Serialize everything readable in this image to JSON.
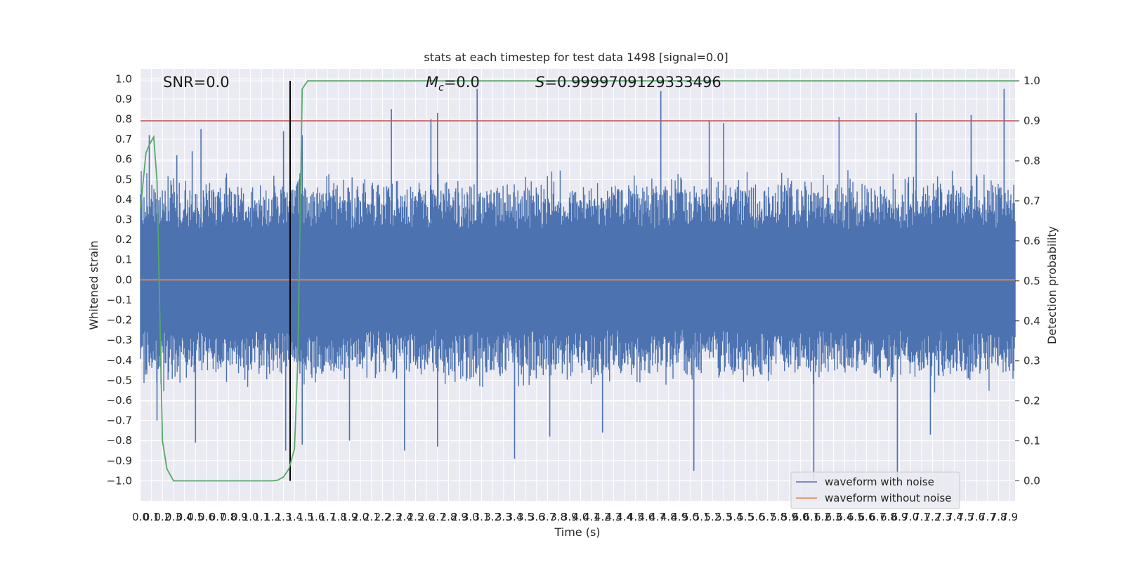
{
  "chart_data": {
    "type": "line",
    "title": "stats at each timestep for test data 1498 [signal=0.0]",
    "xlabel": "Time (s)",
    "ylabel": "Whitened strain",
    "ylabel_right": "Detection probability",
    "xlim": [
      0.0,
      7.95
    ],
    "ylim": [
      -1.1,
      1.05
    ],
    "ylim_right": [
      -0.05,
      1.03
    ],
    "xticks": [
      0.0,
      0.1,
      0.2,
      0.3,
      0.4,
      0.5,
      0.6,
      0.7,
      0.8,
      0.9,
      1.0,
      1.1,
      1.2,
      1.3,
      1.4,
      1.5,
      1.6,
      1.7,
      1.8,
      1.9,
      2.0,
      2.1,
      2.2,
      2.3,
      2.4,
      2.5,
      2.6,
      2.7,
      2.8,
      2.9,
      3.0,
      3.1,
      3.2,
      3.3,
      3.4,
      3.5,
      3.6,
      3.7,
      3.8,
      3.9,
      4.0,
      4.1,
      4.2,
      4.3,
      4.4,
      4.5,
      4.6,
      4.7,
      4.8,
      4.9,
      5.0,
      5.1,
      5.2,
      5.3,
      5.4,
      5.5,
      5.6,
      5.7,
      5.8,
      5.9,
      6.0,
      6.1,
      6.2,
      6.3,
      6.4,
      6.5,
      6.6,
      6.7,
      6.8,
      6.9,
      7.0,
      7.1,
      7.2,
      7.3,
      7.4,
      7.5,
      7.6,
      7.7,
      7.8,
      7.9
    ],
    "xtick_labels": [
      "0.0",
      "0.1",
      "0.2",
      "0.3",
      "0.4",
      "0.5",
      "0.6",
      "0.7",
      "0.8",
      "0.9",
      "1.0",
      "1.1",
      "1.2",
      "1.3",
      "1.4",
      "1.5",
      "1.6",
      "1.7",
      "1.8",
      "1.9",
      "2.0",
      "2.1",
      "2.2",
      "2.3",
      "2.4",
      "2.5",
      "2.6",
      "2.7",
      "2.8",
      "2.9",
      "3.0",
      "3.1",
      "3.2",
      "3.3",
      "3.4",
      "3.5",
      "3.6",
      "3.7",
      "3.8",
      "3.9",
      "4.0",
      "4.1",
      "4.2",
      "4.3",
      "4.4",
      "4.5",
      "4.6",
      "4.7",
      "4.8",
      "4.9",
      "5.0",
      "5.1",
      "5.2",
      "5.3",
      "5.4",
      "5.5",
      "5.6",
      "5.7",
      "5.8",
      "5.9",
      "6.0",
      "6.1",
      "6.2",
      "6.3",
      "6.4",
      "6.5",
      "6.6",
      "6.7",
      "6.8",
      "6.9",
      "7.0",
      "7.1",
      "7.2",
      "7.3",
      "7.4",
      "7.5",
      "7.6",
      "7.7",
      "7.8",
      "7.9"
    ],
    "yticks": [
      -1.0,
      -0.9,
      -0.8,
      -0.7,
      -0.6,
      -0.5,
      -0.4,
      -0.3,
      -0.2,
      -0.1,
      0.0,
      0.1,
      0.2,
      0.3,
      0.4,
      0.5,
      0.6,
      0.7,
      0.8,
      0.9,
      1.0
    ],
    "ytick_labels": [
      "−1.0",
      "−0.9",
      "−0.8",
      "−0.7",
      "−0.6",
      "−0.5",
      "−0.4",
      "−0.3",
      "−0.2",
      "−0.1",
      "0.0",
      "0.1",
      "0.2",
      "0.3",
      "0.4",
      "0.5",
      "0.6",
      "0.7",
      "0.8",
      "0.9",
      "1.0"
    ],
    "yticks_right": [
      0.0,
      0.1,
      0.2,
      0.3,
      0.4,
      0.5,
      0.6,
      0.7,
      0.8,
      0.9,
      1.0
    ],
    "ytick_labels_right": [
      "0.0",
      "0.1",
      "0.2",
      "0.3",
      "0.4",
      "0.5",
      "0.6",
      "0.7",
      "0.8",
      "0.9",
      "1.0"
    ],
    "grid": true,
    "legend_position": "bottom-right",
    "series": [
      {
        "name": "waveform with noise",
        "color": "#4c72b0",
        "axis": "left",
        "kind": "noise-band",
        "typical_range": [
          -0.45,
          0.45
        ],
        "envelope_max": 0.95,
        "envelope_min": -1.0,
        "peaks": [
          [
            0.08,
            0.72
          ],
          [
            0.33,
            0.62
          ],
          [
            0.55,
            0.75
          ],
          [
            0.47,
            0.64
          ],
          [
            1.47,
            0.72
          ],
          [
            1.3,
            0.74
          ],
          [
            2.28,
            0.85
          ],
          [
            2.64,
            0.8
          ],
          [
            2.7,
            0.83
          ],
          [
            3.06,
            0.95
          ],
          [
            4.73,
            0.94
          ],
          [
            5.17,
            0.79
          ],
          [
            5.3,
            0.78
          ],
          [
            6.35,
            0.81
          ],
          [
            7.05,
            0.83
          ],
          [
            7.55,
            0.82
          ],
          [
            7.85,
            0.95
          ]
        ],
        "troughs": [
          [
            0.15,
            -0.7
          ],
          [
            0.5,
            -0.81
          ],
          [
            1.32,
            -0.85
          ],
          [
            1.47,
            -0.82
          ],
          [
            1.9,
            -0.8
          ],
          [
            2.4,
            -0.85
          ],
          [
            2.7,
            -0.83
          ],
          [
            3.4,
            -0.89
          ],
          [
            3.72,
            -0.78
          ],
          [
            4.2,
            -0.76
          ],
          [
            5.03,
            -0.95
          ],
          [
            6.12,
            -1.0
          ],
          [
            6.88,
            -1.0
          ],
          [
            7.18,
            -0.77
          ]
        ]
      },
      {
        "name": "waveform without noise",
        "color": "#dd8452",
        "axis": "left",
        "x": [
          0.0,
          7.95
        ],
        "y": [
          0.0,
          0.0
        ]
      },
      {
        "name": "detection probability",
        "color": "#55a868",
        "axis": "right",
        "x": [
          0.0,
          0.05,
          0.08,
          0.12,
          0.15,
          0.2,
          0.24,
          0.3,
          0.4,
          0.6,
          0.8,
          1.0,
          1.1,
          1.15,
          1.2,
          1.25,
          1.3,
          1.35,
          1.4,
          1.43,
          1.47,
          1.52,
          1.6,
          1.8,
          2.5,
          4.0,
          6.0,
          7.0,
          7.95
        ],
        "y": [
          0.68,
          0.82,
          0.84,
          0.86,
          0.75,
          0.1,
          0.03,
          0.0,
          0.0,
          0.0,
          0.0,
          0.0,
          0.0,
          0.0,
          0.0,
          0.002,
          0.01,
          0.03,
          0.08,
          0.3,
          0.98,
          1.0,
          1.0,
          1.0,
          1.0,
          1.0,
          1.0,
          1.0,
          1.0
        ]
      }
    ],
    "threshold": {
      "value": 0.9,
      "axis": "right",
      "color": "#c44e52"
    },
    "detection_time_marker": {
      "x": 1.36,
      "color": "#000000"
    },
    "annotations": {
      "snr": "SNR=0.0",
      "mc_symbol": "M",
      "mc_subscript": "c",
      "mc_value": "=0.0",
      "s_symbol": "S",
      "s_value": "=0.9999709129333496"
    }
  }
}
